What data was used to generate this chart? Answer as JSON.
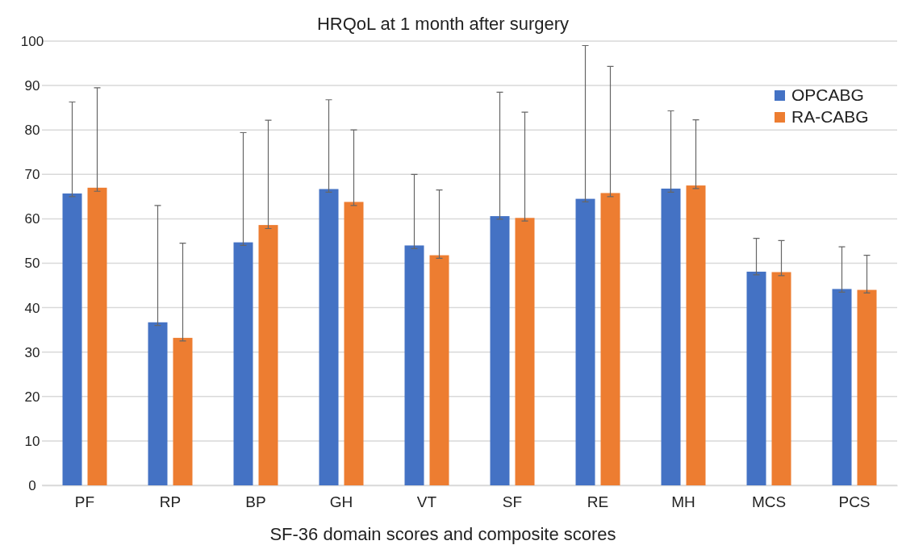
{
  "chart_data": {
    "type": "bar",
    "title": "HRQoL at 1 month after surgery",
    "xlabel": "SF-36 domain scores and composite scores",
    "categories": [
      "PF",
      "RP",
      "BP",
      "GH",
      "VT",
      "SF",
      "RE",
      "MH",
      "MCS",
      "PCS"
    ],
    "series": [
      {
        "name": "OPCABG",
        "color": "#4472c4",
        "values": [
          65.7,
          36.7,
          54.7,
          66.7,
          54.0,
          60.6,
          64.5,
          66.8,
          48.1,
          44.2
        ],
        "errors": [
          [
            65.0,
            86.3
          ],
          [
            36.0,
            63.0
          ],
          [
            54.0,
            79.4
          ],
          [
            66.0,
            86.8
          ],
          [
            53.3,
            70.0
          ],
          [
            59.9,
            88.5
          ],
          [
            63.8,
            99.0
          ],
          [
            66.0,
            84.3
          ],
          [
            47.4,
            55.6
          ],
          [
            43.5,
            53.7
          ]
        ]
      },
      {
        "name": "RA-CABG",
        "color": "#ed7d31",
        "values": [
          67.0,
          33.2,
          58.6,
          63.8,
          51.8,
          60.2,
          65.8,
          67.5,
          48.0,
          44.0
        ],
        "errors": [
          [
            66.2,
            89.5
          ],
          [
            32.5,
            54.5
          ],
          [
            57.8,
            82.2
          ],
          [
            63.0,
            80.0
          ],
          [
            51.1,
            66.5
          ],
          [
            59.5,
            84.0
          ],
          [
            65.0,
            94.3
          ],
          [
            66.8,
            82.3
          ],
          [
            47.2,
            55.1
          ],
          [
            43.3,
            51.8
          ]
        ]
      }
    ],
    "ylim": [
      0,
      100
    ],
    "yticks": [
      0,
      10,
      20,
      30,
      40,
      50,
      60,
      70,
      80,
      90,
      100
    ],
    "grid": "y",
    "legend": "top right"
  }
}
